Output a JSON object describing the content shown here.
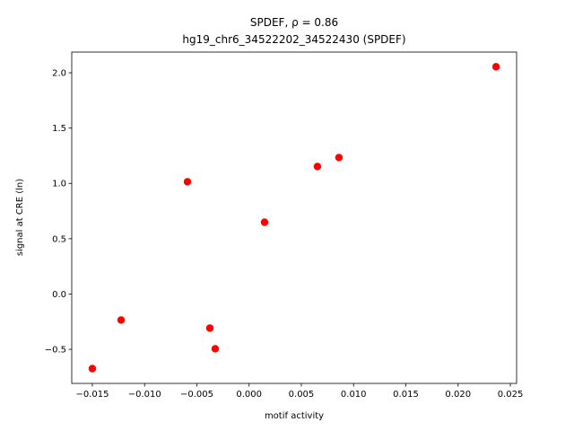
{
  "chart_data": {
    "type": "scatter",
    "title": "SPDEF, ρ = 0.86",
    "subtitle": "hg19_chr6_34522202_34522430 (SPDEF)",
    "x_label": "motif activity",
    "y_label": "signal at CRE (ln)",
    "color": "#ff0000",
    "x": [
      0.02363,
      0.0086,
      0.00654,
      -0.0059,
      0.00148,
      -0.01225,
      -0.00375,
      -0.00324,
      -0.015
    ],
    "values": [
      2.054,
      1.234,
      1.153,
      1.015,
      0.649,
      -0.235,
      -0.308,
      -0.495,
      -0.674
    ],
    "xlim": [
      -0.01697,
      0.0256
    ],
    "ylim": [
      -0.808,
      2.187
    ],
    "xticks": [
      {
        "value": -0.015,
        "label": "−0.015"
      },
      {
        "value": -0.01,
        "label": "−0.010"
      },
      {
        "value": -0.005,
        "label": "−0.005"
      },
      {
        "value": 0,
        "label": "0.000"
      },
      {
        "value": 0.005,
        "label": "0.005"
      },
      {
        "value": 0.01,
        "label": "0.010"
      },
      {
        "value": 0.015,
        "label": "0.015"
      },
      {
        "value": 0.02,
        "label": "0.020"
      },
      {
        "value": 0.025,
        "label": "0.025"
      }
    ],
    "yticks": [
      {
        "value": -0.5,
        "label": "−0.5"
      },
      {
        "value": 0,
        "label": "0.0"
      },
      {
        "value": 0.5,
        "label": "0.5"
      },
      {
        "value": 1,
        "label": "1.0"
      },
      {
        "value": 1.5,
        "label": "1.5"
      },
      {
        "value": 2,
        "label": "2.0"
      }
    ]
  }
}
